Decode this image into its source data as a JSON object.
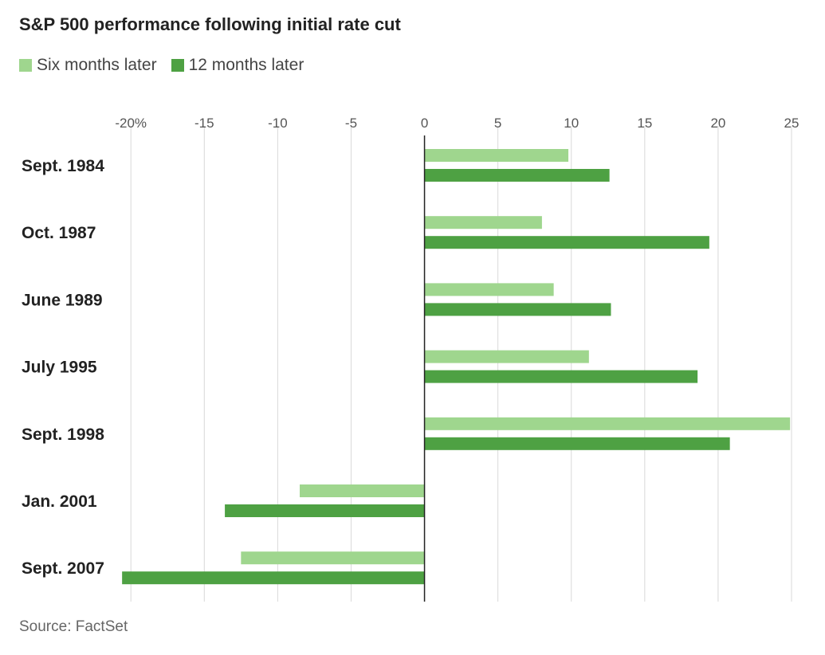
{
  "title": "S&P 500 performance following initial rate cut",
  "legend": {
    "six": "Six months later",
    "twelve": "12 months later"
  },
  "source": "Source: FactSet",
  "colors": {
    "six": "#9fd68e",
    "twelve": "#4ea143",
    "grid": "#d9d9d9",
    "axis": "#222222",
    "text": "#222222",
    "tick": "#555555"
  },
  "chart_data": {
    "type": "bar",
    "orientation": "horizontal",
    "title": "S&P 500 performance following initial rate cut",
    "xlabel": "",
    "ylabel": "",
    "xlim": [
      -20.5,
      25
    ],
    "xticks": [
      -20,
      -15,
      -10,
      -5,
      0,
      5,
      10,
      15,
      20,
      25
    ],
    "xtick_labels": [
      "-20%",
      "-15",
      "-10",
      "-5",
      "0",
      "5",
      "10",
      "15",
      "20",
      "25"
    ],
    "categories": [
      "Sept. 1984",
      "Oct. 1987",
      "June 1989",
      "July 1995",
      "Sept. 1998",
      "Jan. 2001",
      "Sept. 2007"
    ],
    "series": [
      {
        "name": "Six months later",
        "values": [
          9.8,
          8.0,
          8.8,
          11.2,
          24.9,
          -8.5,
          -12.5
        ]
      },
      {
        "name": "12 months later",
        "values": [
          12.6,
          19.4,
          12.7,
          18.6,
          20.8,
          -13.6,
          -20.6
        ]
      }
    ],
    "grid": true,
    "legend_position": "top-left"
  }
}
